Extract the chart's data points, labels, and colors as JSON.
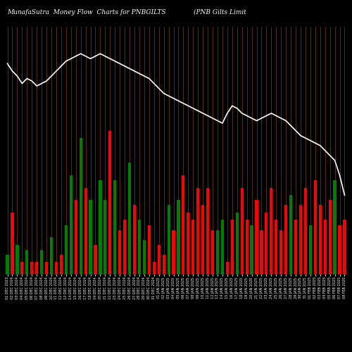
{
  "title_left": "MunafaSutra  Money Flow  Charts for PNBGILTS",
  "title_right": "(PNB Gilts Limit",
  "bg_color": "#000000",
  "grid_color": "#8B4513",
  "line_color": "#ffffff",
  "bar_colors": [
    "green",
    "red",
    "green",
    "red",
    "green",
    "red",
    "red",
    "green",
    "red",
    "green",
    "red",
    "red",
    "green",
    "green",
    "red",
    "green",
    "red",
    "green",
    "red",
    "green",
    "green",
    "red",
    "green",
    "red",
    "red",
    "green",
    "red",
    "green",
    "green",
    "red",
    "red",
    "red",
    "red",
    "green",
    "red",
    "green",
    "red",
    "red",
    "red",
    "red",
    "red",
    "red",
    "red",
    "green",
    "green",
    "red",
    "red",
    "green",
    "red",
    "red",
    "green",
    "red",
    "red",
    "red",
    "red",
    "red",
    "red",
    "red",
    "green",
    "red",
    "red",
    "red",
    "green",
    "red",
    "red",
    "red",
    "red",
    "green",
    "red",
    "red"
  ],
  "bar_heights": [
    8,
    25,
    12,
    5,
    10,
    5,
    5,
    10,
    5,
    15,
    5,
    8,
    20,
    40,
    30,
    55,
    35,
    30,
    12,
    38,
    30,
    58,
    38,
    18,
    22,
    45,
    28,
    22,
    14,
    20,
    5,
    12,
    8,
    28,
    18,
    30,
    40,
    25,
    22,
    35,
    28,
    35,
    18,
    18,
    22,
    5,
    22,
    25,
    35,
    22,
    20,
    30,
    18,
    25,
    35,
    22,
    18,
    28,
    32,
    22,
    28,
    35,
    20,
    38,
    28,
    22,
    30,
    38,
    20,
    22
  ],
  "line_values": [
    85,
    82,
    80,
    77,
    79,
    78,
    76,
    77,
    78,
    80,
    82,
    84,
    86,
    87,
    88,
    89,
    88,
    87,
    88,
    89,
    88,
    87,
    86,
    85,
    84,
    83,
    82,
    81,
    80,
    79,
    77,
    75,
    73,
    72,
    71,
    70,
    69,
    68,
    67,
    66,
    65,
    64,
    63,
    62,
    61,
    65,
    68,
    67,
    65,
    64,
    63,
    62,
    63,
    64,
    65,
    64,
    63,
    62,
    60,
    58,
    56,
    55,
    54,
    53,
    52,
    50,
    48,
    46,
    40,
    32
  ],
  "n_bars": 70,
  "xlabel_fontsize": 3.5,
  "title_fontsize": 6.5,
  "xlabels": [
    "01 DEC 2023",
    "02 DEC 2024",
    "03 DEC 2024",
    "04 DEC 2024",
    "05 DEC 2024",
    "06 DEC 2024",
    "07 DEC 2024",
    "08 DEC 2024",
    "09 DEC 2024",
    "10 DEC 2024",
    "11 DEC 2024",
    "12 DEC 2024",
    "13 DEC 2024",
    "14 DEC 2024",
    "15 DEC 2024",
    "16 DEC 2024",
    "17 DEC 2024",
    "18 DEC 2024",
    "19 DEC 2024",
    "20 DEC 2024",
    "21 DEC 2024",
    "22 DEC 2024",
    "23 DEC 2024",
    "24 DEC 2024",
    "25 DEC 2024",
    "26 DEC 2024",
    "27 DEC 2024",
    "28 DEC 2024",
    "29 DEC 2024",
    "30 DEC 2024",
    "31 DEC 2024",
    "01 JAN 2025",
    "02 JAN 2025",
    "03 JAN 2025",
    "04 JAN 2025",
    "05 JAN 2025",
    "06 JAN 2025",
    "07 JAN 2025",
    "08 JAN 2025",
    "09 JAN 2025",
    "10 JAN 2025",
    "11 JAN 2025",
    "12 JAN 2025",
    "13 JAN 2025",
    "14 JAN 2025",
    "15 JAN 2025",
    "16 JAN 2025",
    "17 JAN 2025",
    "18 JAN 2025",
    "19 JAN 2025",
    "20 JAN 2025",
    "21 JAN 2025",
    "22 JAN 2025",
    "23 JAN 2025",
    "24 JAN 2025",
    "25 JAN 2025",
    "26 JAN 2025",
    "27 JAN 2025",
    "28 JAN 2025",
    "29 JAN 2025",
    "30 JAN 2025",
    "31 JAN 2025",
    "01 FEB 2025",
    "02 FEB 2025",
    "03 FEB 2025",
    "04 FEB 2025",
    "05 FEB 2025",
    "06 FEB 2025",
    "07 FEB 2025",
    "08 FEB 2025"
  ]
}
